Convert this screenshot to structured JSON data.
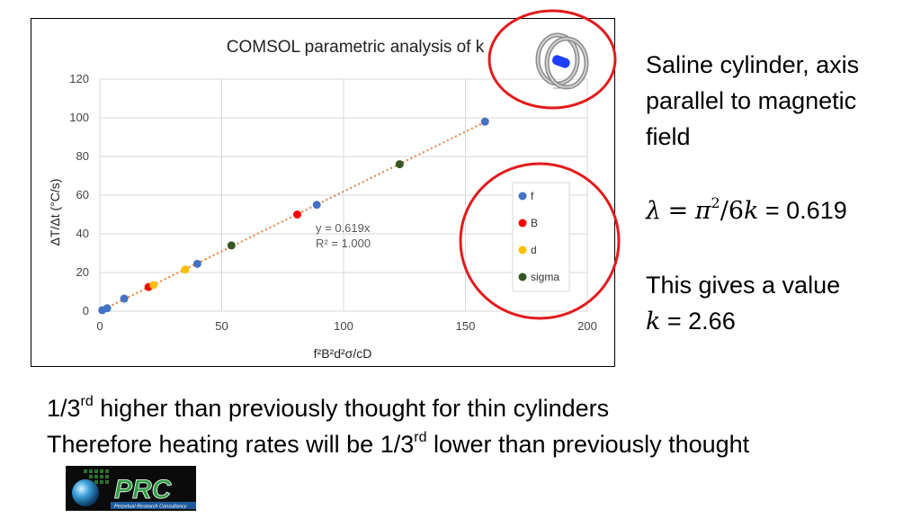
{
  "chart_data": {
    "type": "scatter",
    "title": "COMSOL parametric analysis of k",
    "xlabel": "f²B²d²σ/cD",
    "ylabel": "ΔT/Δt (°C/s)",
    "xlim": [
      0,
      200
    ],
    "ylim": [
      0,
      120
    ],
    "xticks": [
      0,
      50,
      100,
      150,
      200
    ],
    "yticks": [
      0,
      20,
      40,
      60,
      80,
      100,
      120
    ],
    "grid": true,
    "legend_position": "right",
    "series": [
      {
        "name": "f",
        "color": "#4472c4",
        "points": [
          [
            1,
            0.5
          ],
          [
            3,
            1.5
          ],
          [
            10,
            6.5
          ],
          [
            40,
            24.5
          ],
          [
            89,
            55
          ],
          [
            158,
            98
          ]
        ]
      },
      {
        "name": "B",
        "color": "#ff0000",
        "points": [
          [
            20,
            12.5
          ],
          [
            81,
            50
          ]
        ]
      },
      {
        "name": "d",
        "color": "#ffc000",
        "points": [
          [
            22,
            13.5
          ],
          [
            35,
            21.5
          ]
        ]
      },
      {
        "name": "sigma",
        "color": "#375623",
        "points": [
          [
            54,
            34
          ],
          [
            123,
            76
          ]
        ]
      }
    ],
    "trendline": {
      "slope": 0.619,
      "x_range": [
        0,
        160
      ],
      "color": "#ed7d31"
    },
    "annotation": {
      "equation": "y = 0.619x",
      "r2": "R² = 1.000"
    }
  },
  "side": {
    "line1": "Saline cylinder, axis",
    "line2": "parallel to magnetic",
    "line3": "field",
    "lambda_sym": "λ",
    "eq_sym": "=",
    "pi_sym": "π",
    "sq": "2",
    "div": "/6",
    "k_sym": "k",
    "lambda_value": "= 0.619",
    "gives": "This gives a value",
    "k_value": "= 2.66"
  },
  "bottom": {
    "line1_pre": "1/3",
    "line1_sup": "rd",
    "line1_post": " higher than previously thought for thin cylinders",
    "line2_pre": "Therefore heating rates will be 1/3",
    "line2_sup": "rd",
    "line2_post": " lower than previously thought"
  },
  "logo": {
    "text": "PRC",
    "tagline": "Perpetual Research Consultancy"
  },
  "colors": {
    "highlight_circle": "#e31a1c"
  }
}
